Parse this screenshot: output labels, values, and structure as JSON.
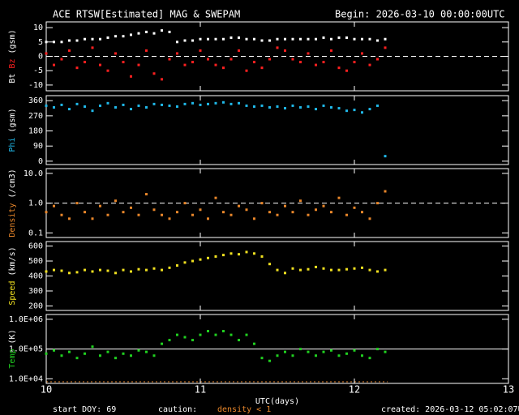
{
  "header": {
    "title": "ACE RTSW[Estimated] MAG & SWEPAM",
    "begin": "Begin: 2026-03-10 00:00:00UTC"
  },
  "footer": {
    "start_doy": "start DOY:  69",
    "caution": "caution:",
    "caution_note": "density < 1",
    "created": "created: 2026-03-12 05:02:07UTC"
  },
  "chart_data": [
    {
      "type": "scatter",
      "ylabel": "(gsm)",
      "xlim": [
        10,
        13
      ],
      "xticks": [
        10,
        11,
        12,
        13
      ],
      "ylim": [
        -12,
        12
      ],
      "yticks": [
        -10,
        -5,
        0,
        5,
        10
      ],
      "log": false,
      "hline": 0,
      "hline_style": "dashed",
      "x": [
        10,
        10.05,
        10.1,
        10.15,
        10.2,
        10.25,
        10.3,
        10.35,
        10.4,
        10.45,
        10.5,
        10.55,
        10.6,
        10.65,
        10.7,
        10.75,
        10.8,
        10.85,
        10.9,
        10.95,
        11,
        11.05,
        11.1,
        11.15,
        11.2,
        11.25,
        11.3,
        11.35,
        11.4,
        11.45,
        11.5,
        11.55,
        11.6,
        11.65,
        11.7,
        11.75,
        11.8,
        11.85,
        11.9,
        11.95,
        12,
        12.05,
        12.1,
        12.15,
        12.2
      ],
      "series": [
        {
          "name": "Bt",
          "color": "#ffffff",
          "values": [
            5,
            5,
            5,
            5.5,
            5.5,
            6,
            6,
            6,
            6.5,
            7,
            7,
            7.5,
            8,
            8.5,
            8,
            9,
            8.5,
            5,
            5.5,
            5.5,
            6,
            6,
            6,
            6,
            6.5,
            6.5,
            6,
            6,
            5.5,
            5.5,
            6,
            6,
            6,
            6,
            6,
            6,
            6.5,
            6,
            6.5,
            6.5,
            6,
            6,
            6,
            5.5,
            6
          ]
        },
        {
          "name": "Bz",
          "color": "#ff2020",
          "values": [
            1,
            -3,
            -1,
            2,
            -4,
            -2,
            3,
            -3,
            -5,
            1,
            -2,
            -7,
            -3,
            2,
            -6,
            -8,
            -1,
            1,
            -3,
            -2,
            2,
            -1,
            -3,
            -4,
            -1,
            2,
            -5,
            -2,
            -4,
            -1,
            3,
            2,
            -1,
            -2,
            1,
            -3,
            -2,
            2,
            -4,
            -5,
            -2,
            1,
            -3,
            -1,
            3
          ]
        }
      ]
    },
    {
      "type": "scatter",
      "ylabel": "(gsm)",
      "xlim": [
        10,
        13
      ],
      "xticks": [
        10,
        11,
        12,
        13
      ],
      "ylim": [
        -20,
        390
      ],
      "yticks": [
        0,
        90,
        180,
        270,
        360
      ],
      "log": false,
      "x": [
        10,
        10.05,
        10.1,
        10.15,
        10.2,
        10.25,
        10.3,
        10.35,
        10.4,
        10.45,
        10.5,
        10.55,
        10.6,
        10.65,
        10.7,
        10.75,
        10.8,
        10.85,
        10.9,
        10.95,
        11,
        11.05,
        11.1,
        11.15,
        11.2,
        11.25,
        11.3,
        11.35,
        11.4,
        11.45,
        11.5,
        11.55,
        11.6,
        11.65,
        11.7,
        11.75,
        11.8,
        11.85,
        11.9,
        11.95,
        12,
        12.05,
        12.1,
        12.15,
        12.2
      ],
      "series": [
        {
          "name": "Phi",
          "color": "#20b8e8",
          "values": [
            330,
            320,
            335,
            310,
            340,
            325,
            300,
            330,
            345,
            320,
            335,
            310,
            330,
            320,
            340,
            335,
            330,
            325,
            340,
            345,
            335,
            340,
            345,
            350,
            340,
            345,
            330,
            325,
            330,
            320,
            325,
            315,
            330,
            320,
            325,
            310,
            330,
            320,
            315,
            300,
            305,
            290,
            310,
            330,
            30
          ]
        }
      ]
    },
    {
      "type": "scatter",
      "ylabel": "(/cm3)",
      "xlim": [
        10,
        13
      ],
      "xticks": [
        10,
        11,
        12,
        13
      ],
      "ylim": [
        0.07,
        14.5
      ],
      "yticks": [
        {
          "value": 0.1,
          "label": "0.1"
        },
        {
          "value": 1,
          "label": "1.0"
        },
        {
          "value": 10,
          "label": "10.0"
        }
      ],
      "log": true,
      "hline": 1,
      "hline_style": "dashed",
      "x": [
        10,
        10.05,
        10.1,
        10.15,
        10.2,
        10.25,
        10.3,
        10.35,
        10.4,
        10.45,
        10.5,
        10.55,
        10.6,
        10.65,
        10.7,
        10.75,
        10.8,
        10.85,
        10.9,
        10.95,
        11,
        11.05,
        11.1,
        11.15,
        11.2,
        11.25,
        11.3,
        11.35,
        11.4,
        11.45,
        11.5,
        11.55,
        11.6,
        11.65,
        11.7,
        11.75,
        11.8,
        11.85,
        11.9,
        11.95,
        12,
        12.05,
        12.1,
        12.15,
        12.2
      ],
      "series": [
        {
          "name": "Density",
          "color": "#e8862a",
          "values": [
            0.5,
            0.8,
            0.4,
            0.3,
            1.0,
            0.5,
            0.3,
            0.8,
            0.4,
            1.2,
            0.5,
            0.7,
            0.4,
            2.0,
            0.6,
            0.4,
            0.3,
            0.5,
            1.0,
            0.4,
            0.6,
            0.3,
            1.5,
            0.5,
            0.4,
            0.8,
            0.6,
            0.3,
            1.0,
            0.5,
            0.4,
            0.8,
            0.5,
            1.2,
            0.4,
            0.6,
            0.8,
            0.5,
            1.5,
            0.4,
            0.7,
            0.5,
            0.3,
            1.0,
            2.5
          ]
        }
      ]
    },
    {
      "type": "scatter",
      "ylabel": "(km/s)",
      "xlim": [
        10,
        13
      ],
      "xticks": [
        10,
        11,
        12,
        13
      ],
      "ylim": [
        170,
        630
      ],
      "yticks": [
        200,
        300,
        400,
        500,
        600
      ],
      "log": false,
      "x": [
        10,
        10.05,
        10.1,
        10.15,
        10.2,
        10.25,
        10.3,
        10.35,
        10.4,
        10.45,
        10.5,
        10.55,
        10.6,
        10.65,
        10.7,
        10.75,
        10.8,
        10.85,
        10.9,
        10.95,
        11,
        11.05,
        11.1,
        11.15,
        11.2,
        11.25,
        11.3,
        11.35,
        11.4,
        11.45,
        11.5,
        11.55,
        11.6,
        11.65,
        11.7,
        11.75,
        11.8,
        11.85,
        11.9,
        11.95,
        12,
        12.05,
        12.1,
        12.15,
        12.2
      ],
      "series": [
        {
          "name": "Speed",
          "color": "#f0e020",
          "values": [
            430,
            440,
            435,
            420,
            425,
            440,
            430,
            440,
            435,
            420,
            440,
            430,
            445,
            440,
            450,
            440,
            455,
            470,
            490,
            500,
            510,
            520,
            530,
            540,
            550,
            545,
            560,
            550,
            530,
            480,
            440,
            420,
            450,
            440,
            445,
            460,
            450,
            440,
            440,
            445,
            450,
            455,
            440,
            430,
            440
          ]
        }
      ]
    },
    {
      "type": "scatter",
      "ylabel": "(K)",
      "xlabel": "UTC(days)",
      "xlim": [
        10,
        13
      ],
      "xticks": [
        10,
        11,
        12,
        13
      ],
      "ylim": [
        7000,
        1450000
      ],
      "yticks": [
        {
          "value": 10000,
          "label": "1.0E+04"
        },
        {
          "value": 100000,
          "label": "1.0E+05"
        },
        {
          "value": 1000000,
          "label": "1.0E+06"
        }
      ],
      "log": true,
      "hline": 100000,
      "hline_style": "solid",
      "x": [
        10,
        10.05,
        10.1,
        10.15,
        10.2,
        10.25,
        10.3,
        10.35,
        10.4,
        10.45,
        10.5,
        10.55,
        10.6,
        10.65,
        10.7,
        10.75,
        10.8,
        10.85,
        10.9,
        10.95,
        11,
        11.05,
        11.1,
        11.15,
        11.2,
        11.25,
        11.3,
        11.35,
        11.4,
        11.45,
        11.5,
        11.55,
        11.6,
        11.65,
        11.7,
        11.75,
        11.8,
        11.85,
        11.9,
        11.95,
        12,
        12.05,
        12.1,
        12.15,
        12.2
      ],
      "series": [
        {
          "name": "Temp",
          "color": "#20d020",
          "values": [
            70000,
            90000,
            60000,
            80000,
            50000,
            70000,
            120000,
            60000,
            80000,
            50000,
            70000,
            60000,
            90000,
            80000,
            60000,
            150000,
            200000,
            300000,
            250000,
            200000,
            300000,
            400000,
            300000,
            400000,
            300000,
            200000,
            300000,
            150000,
            50000,
            40000,
            60000,
            80000,
            60000,
            100000,
            80000,
            60000,
            80000,
            90000,
            60000,
            70000,
            90000,
            60000,
            50000,
            100000,
            80000
          ]
        }
      ]
    }
  ]
}
